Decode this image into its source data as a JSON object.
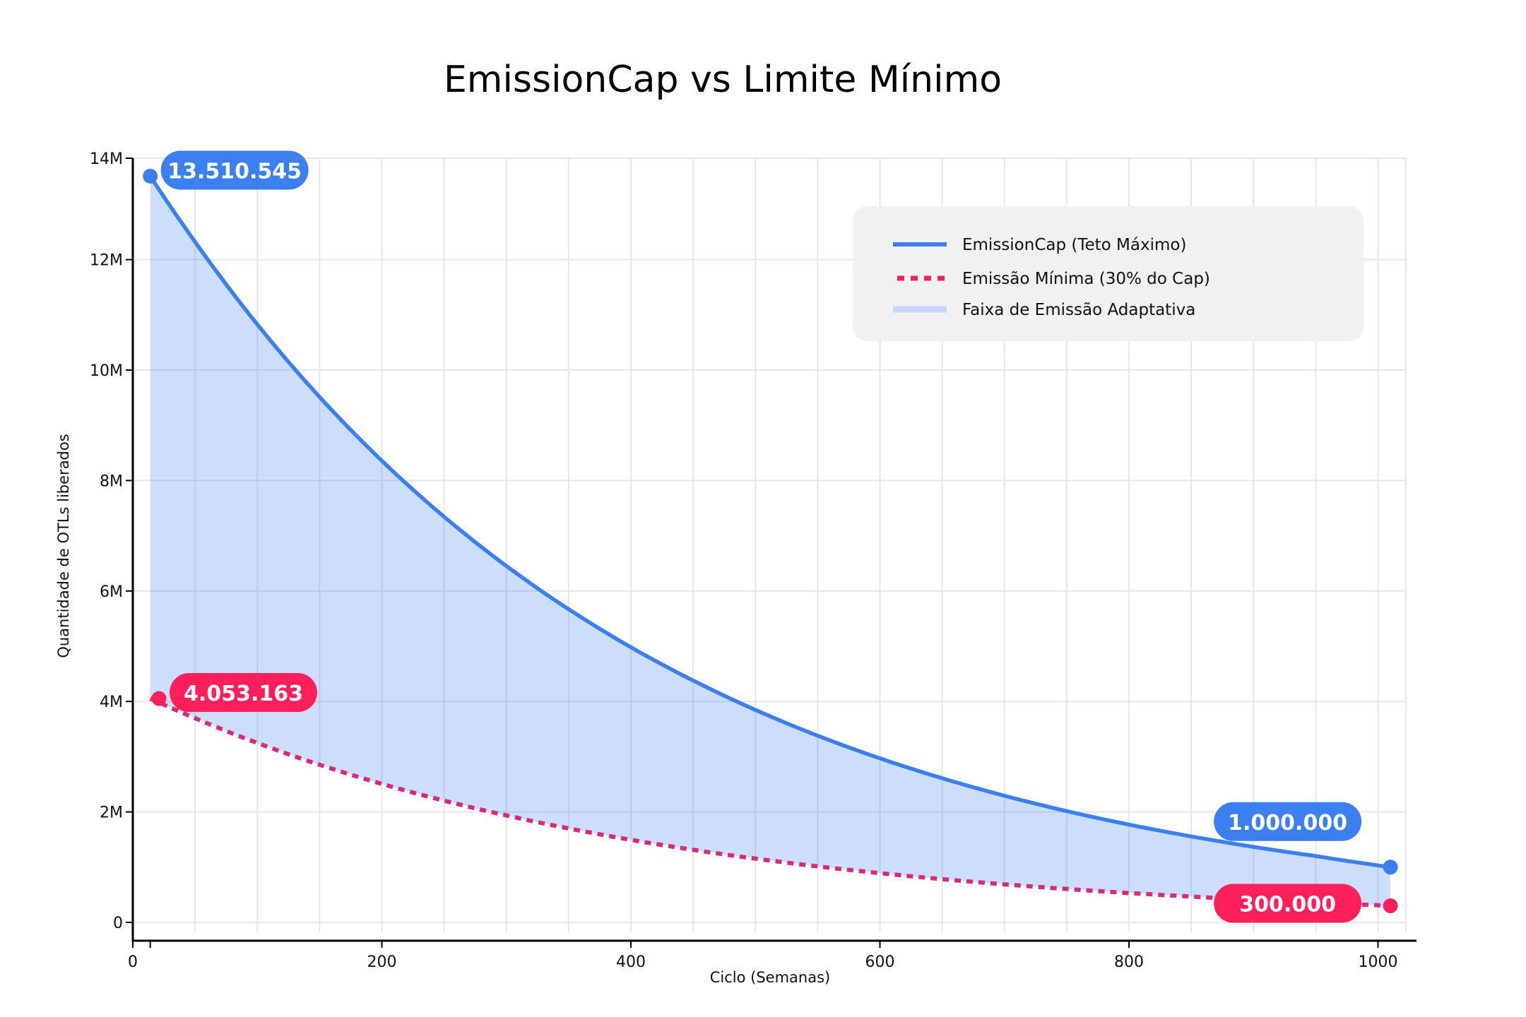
{
  "chart_data": {
    "type": "area",
    "title": "EmissionCap vs Limite Mínimo",
    "xlabel": "Ciclo (Semanas)",
    "ylabel": "Quantidade de OTLs liberados",
    "xlim": [
      0,
      1030
    ],
    "ylim": [
      0,
      14000000
    ],
    "x_ticks": [
      0,
      200,
      400,
      600,
      800,
      1000
    ],
    "x_tick_labels": [
      "0",
      "200",
      "400",
      "600",
      "800",
      "1000"
    ],
    "y_ticks": [
      0,
      2000000,
      4000000,
      6000000,
      8000000,
      10000000,
      12000000,
      14000000
    ],
    "y_tick_labels": [
      "0",
      "2M",
      "4M",
      "6M",
      "8M",
      "10M",
      "12M",
      "14M"
    ],
    "grid": true,
    "x": [
      14,
      50,
      100,
      150,
      200,
      250,
      300,
      350,
      400,
      450,
      500,
      550,
      600,
      650,
      700,
      750,
      800,
      850,
      900,
      950,
      1010
    ],
    "series": [
      {
        "name": "EmissionCap (Teto Máximo)",
        "style": "solid",
        "color": "#3b7ff0",
        "values": [
          13510545,
          12321000,
          10826000,
          9512000,
          8358000,
          7344000,
          6453000,
          5670000,
          4982000,
          4378000,
          3847000,
          3380000,
          2970000,
          2610000,
          2293000,
          2015000,
          1770000,
          1556000,
          1367000,
          1201000,
          1000000
        ]
      },
      {
        "name": "Emissão Mínima (30% do Cap)",
        "style": "dotted",
        "color": "#ff1f5a",
        "values": [
          4053163,
          3696300,
          3247800,
          2853600,
          2507400,
          2203200,
          1935900,
          1701000,
          1494600,
          1313400,
          1154100,
          1014000,
          891000,
          783000,
          687900,
          604500,
          531000,
          466800,
          410100,
          360300,
          300000
        ]
      }
    ],
    "band": {
      "name": "Faixa de Emissão Adaptativa",
      "between": [
        "EmissionCap (Teto Máximo)",
        "Emissão Mínima (30% do Cap)"
      ],
      "color": "#3b7ff0",
      "opacity": 0.26
    },
    "legend": {
      "placement": "top-right",
      "entries": [
        {
          "label": "EmissionCap (Teto Máximo)",
          "style": "solid",
          "color": "#3b7ff0"
        },
        {
          "label": "Emissão Mínima (30% do Cap)",
          "style": "dotted",
          "color": "#ff1f5a"
        },
        {
          "label": "Faixa de Emissão Adaptativa",
          "style": "band",
          "color": "#c6d8f8"
        }
      ]
    },
    "annotations": [
      {
        "label": "13.510.545",
        "x": 14,
        "y": 13510545,
        "series": "EmissionCap (Teto Máximo)",
        "color": "#3b7ff0",
        "side": "right-above"
      },
      {
        "label": "4.053.163",
        "x": 21,
        "y": 4053163,
        "series": "Emissão Mínima (30% do Cap)",
        "color": "#ff1f5a",
        "side": "right-above"
      },
      {
        "label": "1.000.000",
        "x": 1010,
        "y": 1000000,
        "series": "EmissionCap (Teto Máximo)",
        "color": "#3b7ff0",
        "side": "left-above"
      },
      {
        "label": "300.000",
        "x": 1010,
        "y": 300000,
        "series": "Emissão Mínima (30% do Cap)",
        "color": "#ff1f5a",
        "side": "left"
      }
    ],
    "extra_x_tick": 14
  }
}
